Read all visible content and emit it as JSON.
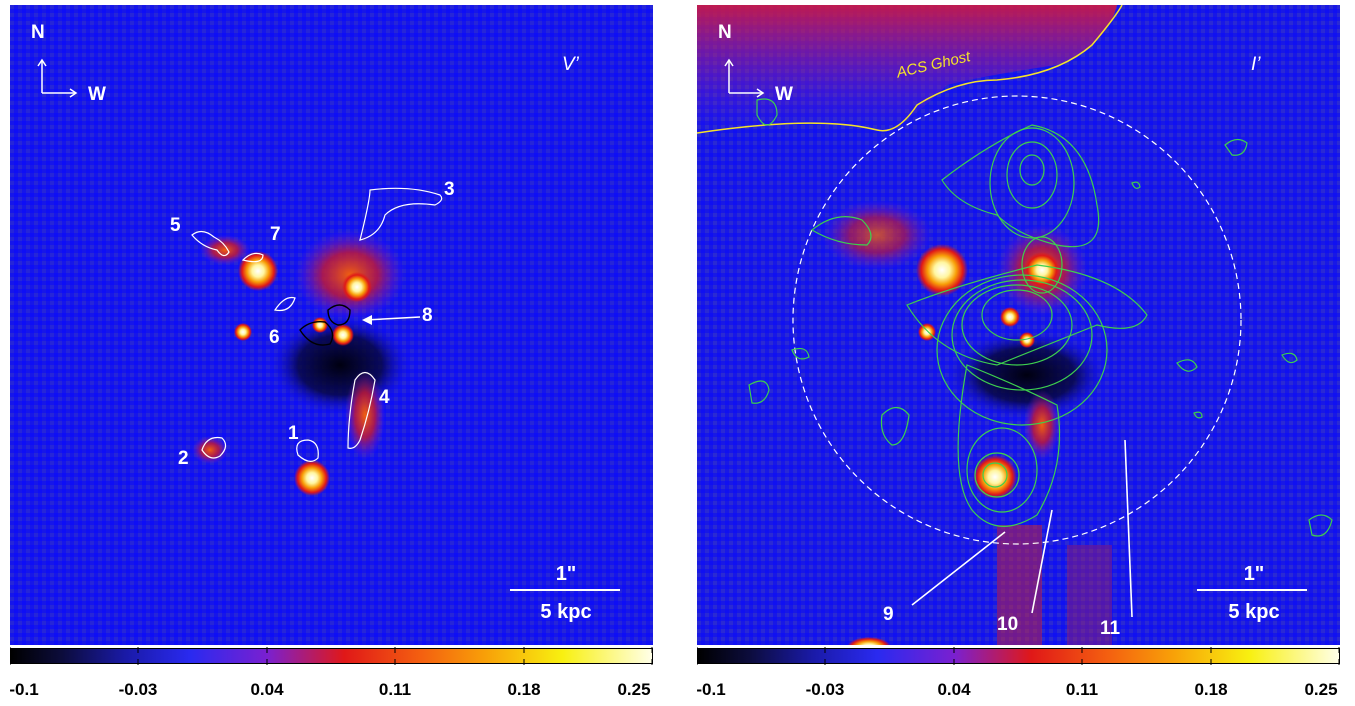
{
  "left_panel": {
    "compass": {
      "north": "N",
      "west": "W"
    },
    "band_label": "V’",
    "region_labels": [
      "1",
      "2",
      "3",
      "4",
      "5",
      "6",
      "7",
      "8"
    ],
    "scale": {
      "angular": "1\"",
      "physical": "5 kpc"
    }
  },
  "right_panel": {
    "compass": {
      "north": "N",
      "west": "W"
    },
    "band_label": "I’",
    "ghost_label": "ACS Ghost",
    "region_labels": [
      "9",
      "10",
      "11"
    ],
    "scale": {
      "angular": "1\"",
      "physical": "5 kpc"
    }
  },
  "colorbar": {
    "ticks": [
      "-0.1",
      "-0.03",
      "0.04",
      "0.11",
      "0.18",
      "0.25"
    ],
    "colors": {
      "low": "#000000",
      "mid_low": "#2a2af0",
      "mid": "#e01818",
      "mid_high": "#f8a008",
      "high": "#ffffe8"
    }
  }
}
